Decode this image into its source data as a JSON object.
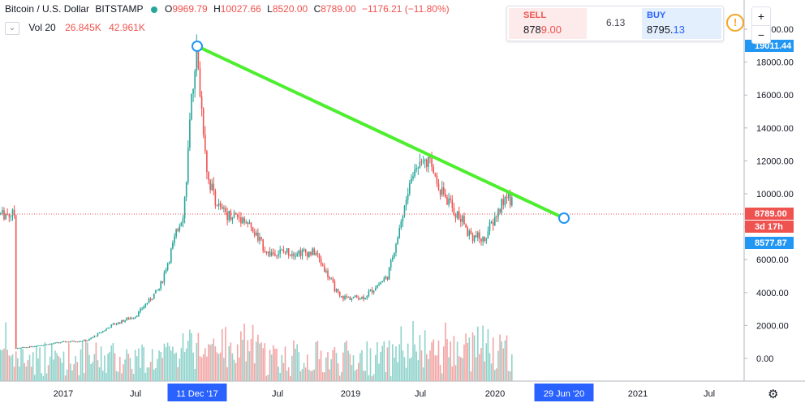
{
  "header": {
    "symbol": "Bitcoin / U.S. Dollar",
    "exchange": "BITSTAMP",
    "o_label": "O",
    "o_value": "9969.79",
    "h_label": "H",
    "h_value": "10027.66",
    "l_label": "L",
    "l_value": "8520.00",
    "c_label": "C",
    "c_value": "8789.00",
    "change": "−1176.21 (−11.80%)"
  },
  "volume_legend": {
    "label": "Vol 20",
    "value1": "26.845K",
    "value2": "42.961K"
  },
  "trade_panel": {
    "sell_label": "SELL",
    "sell_price_main": "878",
    "sell_price_tail": "9.00",
    "spread": "6.13",
    "buy_label": "BUY",
    "buy_price_main": "8795.",
    "buy_price_tail": "13"
  },
  "icons": {
    "chevron": "chevron-down-icon",
    "info": "info-icon",
    "zoom_in": "plus-icon",
    "zoom_out": "minus-icon",
    "settings": "gear-icon"
  },
  "colors": {
    "up": "#26a69a",
    "down": "#ef5350",
    "trendline": "#4cee2e",
    "handle": "#2196f3",
    "price_line": "#ef5350",
    "axis_highlight": "#2962ff"
  },
  "chart_data": {
    "type": "candlestick",
    "title": "Bitcoin / U.S. Dollar",
    "y_axis": {
      "ticks": [
        0,
        2000,
        4000,
        6000,
        8000,
        10000,
        12000,
        14000,
        16000,
        18000,
        20000
      ],
      "tick_labels": [
        "0.00",
        "2000.00",
        "4000.00",
        "6000.00",
        "8000.00",
        "10000.00",
        "12000.00",
        "14000.00",
        "16000.00",
        "18000.00",
        "20000.00"
      ],
      "ylim": [
        0,
        20400
      ]
    },
    "x_axis": {
      "tick_labels": [
        "2017",
        "Jul",
        "11 Dec '17",
        "Jul",
        "2019",
        "Jul",
        "2020",
        "29 Jun '20",
        "2021",
        "Jul"
      ],
      "highlighted": [
        "11 Dec '17",
        "29 Jun '20"
      ]
    },
    "price_labels": [
      {
        "label": "19011.44",
        "value": 19011.44,
        "style": "blue"
      },
      {
        "label": "8789.00",
        "value": 8789,
        "style": "red"
      },
      {
        "label": "3d 17h",
        "value": 8789,
        "style": "red-sub"
      },
      {
        "label": "8577.87",
        "value": 8577.87,
        "style": "blue"
      }
    ],
    "last_price": 8789.0,
    "trendline": {
      "start": {
        "date": "2017-12-11",
        "value": 19011.44
      },
      "end": {
        "date": "2020-06-29",
        "value": 8577.87
      }
    },
    "series": [
      {
        "name": "Price",
        "approx_path": [
          {
            "date": "2016-09",
            "value": 600
          },
          {
            "date": "2017-01",
            "value": 1000
          },
          {
            "date": "2017-03",
            "value": 1100
          },
          {
            "date": "2017-05",
            "value": 2000
          },
          {
            "date": "2017-07",
            "value": 2600
          },
          {
            "date": "2017-09",
            "value": 4300
          },
          {
            "date": "2017-11",
            "value": 9000
          },
          {
            "date": "2017-12",
            "value": 19000
          },
          {
            "date": "2018-01",
            "value": 11000
          },
          {
            "date": "2018-02",
            "value": 9000
          },
          {
            "date": "2018-04",
            "value": 8500
          },
          {
            "date": "2018-06",
            "value": 6400
          },
          {
            "date": "2018-08",
            "value": 6500
          },
          {
            "date": "2018-10",
            "value": 6400
          },
          {
            "date": "2018-12",
            "value": 3700
          },
          {
            "date": "2019-02",
            "value": 3700
          },
          {
            "date": "2019-04",
            "value": 5000
          },
          {
            "date": "2019-06",
            "value": 11000
          },
          {
            "date": "2019-07",
            "value": 12500
          },
          {
            "date": "2019-09",
            "value": 9500
          },
          {
            "date": "2019-11",
            "value": 7500
          },
          {
            "date": "2019-12",
            "value": 7200
          },
          {
            "date": "2020-02",
            "value": 10000
          },
          {
            "date": "2020-03",
            "value": 8789
          }
        ]
      }
    ]
  }
}
